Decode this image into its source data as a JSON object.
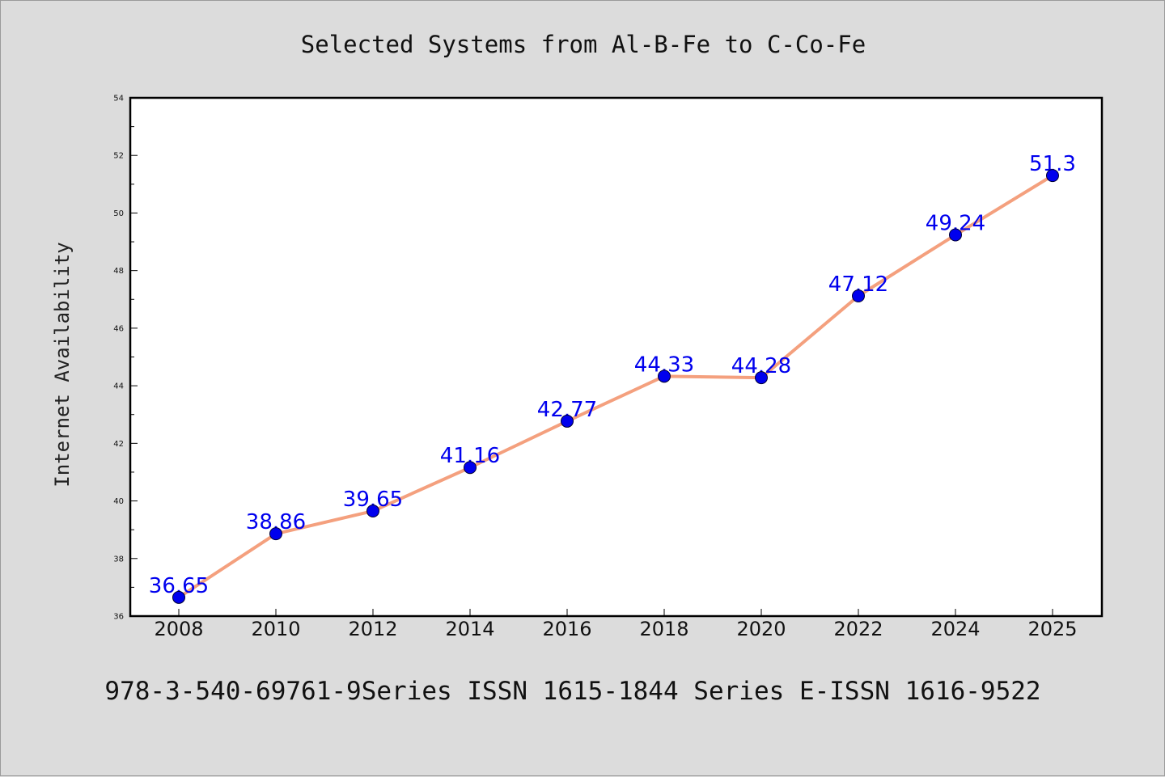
{
  "chart_data": {
    "type": "line",
    "title": "Selected Systems from Al-B-Fe to C-Co-Fe",
    "xlabel": "",
    "ylabel": "Internet Availability",
    "footer": "978-3-540-69761-9Series ISSN 1615-1844 Series E-ISSN 1616-9522",
    "categories": [
      "2008",
      "2010",
      "2012",
      "2014",
      "2016",
      "2018",
      "2020",
      "2022",
      "2024",
      "2025"
    ],
    "series": [
      {
        "values": [
          36.65,
          38.86,
          39.65,
          41.16,
          42.77,
          44.33,
          44.28,
          47.12,
          49.24,
          51.3
        ],
        "data_labels": [
          "36.65",
          "38.86",
          "39.65",
          "41.16",
          "42.77",
          "44.33",
          "44.28",
          "47.12",
          "49.24",
          "51.3"
        ],
        "line_color": "#f4a07e",
        "marker_color": "#0000ee",
        "label_color": "#0000ee"
      }
    ],
    "yticks": [
      "36",
      "38",
      "40",
      "42",
      "44",
      "46",
      "48",
      "50",
      "52",
      "54"
    ],
    "ylim": [
      36,
      54
    ],
    "grid": false,
    "legend": "none"
  }
}
